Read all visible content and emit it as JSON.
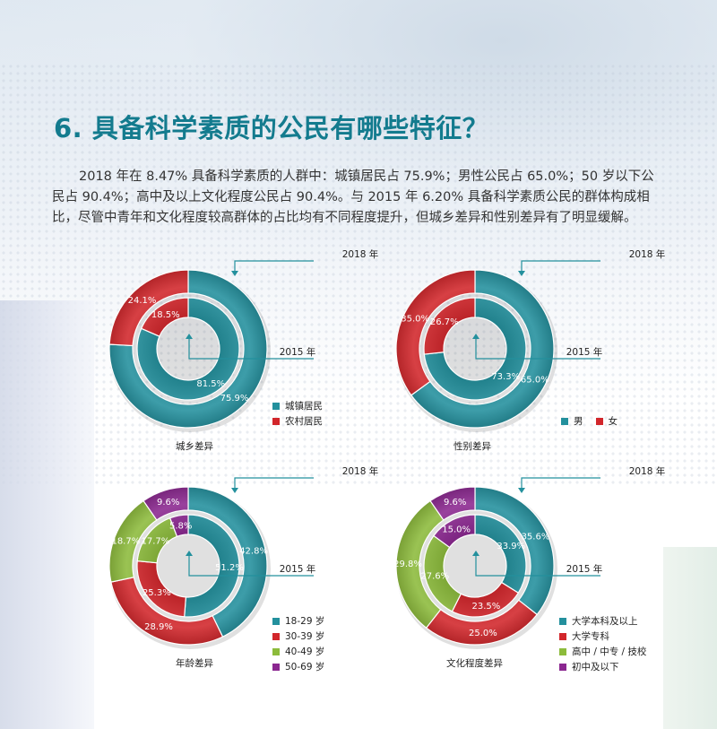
{
  "title": "6. 具备科学素质的公民有哪些特征？",
  "paragraph": "2018 年在 8.47% 具备科学素质的人群中：城镇居民占 75.9%；男性公民占 65.0%；50 岁以下公民占 90.4%；高中及以上文化程度公民占 90.4%。与 2015 年 6.20% 具备科学素质公民的群体构成相比，尽管中青年和文化程度较高群体的占比均有不同程度提升，但城乡差异和性别差异有了明显缓解。",
  "colors": {
    "teal": "#23909d",
    "red": "#d2262b",
    "green": "#8cbb3b",
    "purple": "#8b2790",
    "title": "#137b8e"
  },
  "chart_data": [
    {
      "type": "donut",
      "title": "城乡差异",
      "outer_label": "2018 年",
      "inner_label": "2015 年",
      "categories": [
        "城镇居民",
        "农村居民"
      ],
      "legend": [
        "城镇居民",
        "农村居民"
      ],
      "series": [
        {
          "name": "2018 年",
          "values": [
            75.9,
            24.1
          ],
          "labels": [
            "75.9%",
            "24.1%"
          ]
        },
        {
          "name": "2015 年",
          "values": [
            81.5,
            18.5
          ],
          "labels": [
            "81.5%",
            "18.5%"
          ]
        }
      ],
      "colors": [
        "#23909d",
        "#d2262b"
      ],
      "legend_position": "bottom-right"
    },
    {
      "type": "donut",
      "title": "性别差异",
      "outer_label": "2018 年",
      "inner_label": "2015 年",
      "categories": [
        "男",
        "女"
      ],
      "legend": [
        "男",
        "女"
      ],
      "series": [
        {
          "name": "2018 年",
          "values": [
            65.0,
            35.0
          ],
          "labels": [
            "65.0%",
            "35.0%"
          ]
        },
        {
          "name": "2015 年",
          "values": [
            73.3,
            26.7
          ],
          "labels": [
            "73.3%",
            "26.7%"
          ]
        }
      ],
      "colors": [
        "#23909d",
        "#d2262b"
      ],
      "legend_position": "bottom-right"
    },
    {
      "type": "donut",
      "title": "年龄差异",
      "outer_label": "2018 年",
      "inner_label": "2015 年",
      "categories": [
        "18-29 岁",
        "30-39 岁",
        "40-49 岁",
        "50-69 岁"
      ],
      "legend": [
        "18-29 岁",
        "30-39 岁",
        "40-49 岁",
        "50-69 岁"
      ],
      "series": [
        {
          "name": "2018 年",
          "values": [
            42.8,
            28.9,
            18.7,
            9.6
          ],
          "labels": [
            "42.8%",
            "28.9%",
            "18.7%",
            "9.6%"
          ]
        },
        {
          "name": "2015 年",
          "values": [
            51.2,
            25.3,
            17.7,
            5.8
          ],
          "labels": [
            "51.2%",
            "25.3%",
            "17.7%",
            "5.8%"
          ]
        }
      ],
      "colors": [
        "#23909d",
        "#d2262b",
        "#8cbb3b",
        "#8b2790"
      ],
      "legend_position": "bottom-right"
    },
    {
      "type": "donut",
      "title": "文化程度差异",
      "outer_label": "2018 年",
      "inner_label": "2015 年",
      "categories": [
        "大学本科及以上",
        "大学专科",
        "高中 / 中专 / 技校",
        "初中及以下"
      ],
      "legend": [
        "大学本科及以上",
        "大学专科",
        "高中 / 中专 / 技校",
        "初中及以下"
      ],
      "series": [
        {
          "name": "2018 年",
          "values": [
            35.6,
            25.0,
            29.8,
            9.6
          ],
          "labels": [
            "35.6%",
            "25.0%",
            "29.8%",
            "9.6%"
          ]
        },
        {
          "name": "2015 年",
          "values": [
            33.9,
            23.5,
            27.6,
            15.0
          ],
          "labels": [
            "33.9%",
            "23.5%",
            "27.6%",
            "15.0%"
          ]
        }
      ],
      "colors": [
        "#23909d",
        "#d2262b",
        "#8cbb3b",
        "#8b2790"
      ],
      "legend_position": "bottom-right"
    }
  ]
}
